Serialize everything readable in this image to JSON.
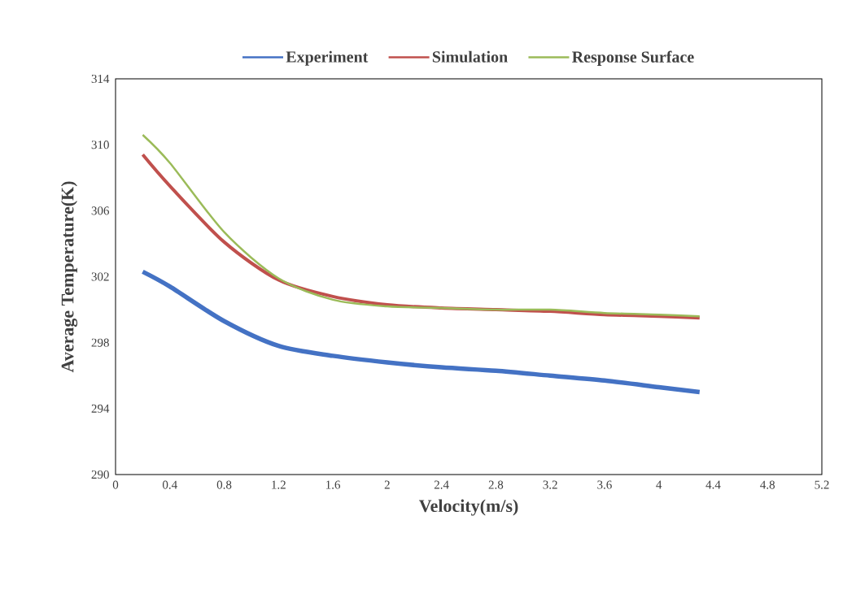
{
  "chart_data": {
    "type": "line",
    "xlabel": "Velocity(m/s)",
    "ylabel": "Average Temperature(K)",
    "xlim": [
      0,
      5.2
    ],
    "xticks": [
      0,
      0.4,
      0.8,
      1.2,
      1.6,
      2,
      2.4,
      2.8,
      3.2,
      3.6,
      4,
      4.4,
      4.8,
      5.2
    ],
    "ylim": [
      290,
      314
    ],
    "yticks": [
      290,
      294,
      298,
      302,
      306,
      310,
      314
    ],
    "grid": false,
    "legend": "top",
    "marker": "none",
    "line_style": "solid",
    "x": [
      0.2,
      0.4,
      0.8,
      1.2,
      1.6,
      2,
      2.4,
      2.8,
      3.2,
      3.6,
      4,
      4.3
    ],
    "series": [
      {
        "name": "Experiment",
        "color": "#4472c4",
        "values": [
          302.3,
          301.4,
          299.3,
          297.8,
          297.2,
          296.8,
          296.5,
          296.3,
          296.0,
          295.7,
          295.3,
          295.0
        ]
      },
      {
        "name": "Simulation",
        "color": "#c0504d",
        "values": [
          309.4,
          307.5,
          304.1,
          301.8,
          300.8,
          300.3,
          300.1,
          300.0,
          299.9,
          299.7,
          299.6,
          299.5
        ]
      },
      {
        "name": "Response Surface",
        "color": "#9bbb59",
        "values": [
          310.6,
          308.9,
          304.7,
          301.9,
          300.6,
          300.2,
          300.1,
          300.0,
          300.0,
          299.8,
          299.7,
          299.6
        ]
      }
    ]
  }
}
